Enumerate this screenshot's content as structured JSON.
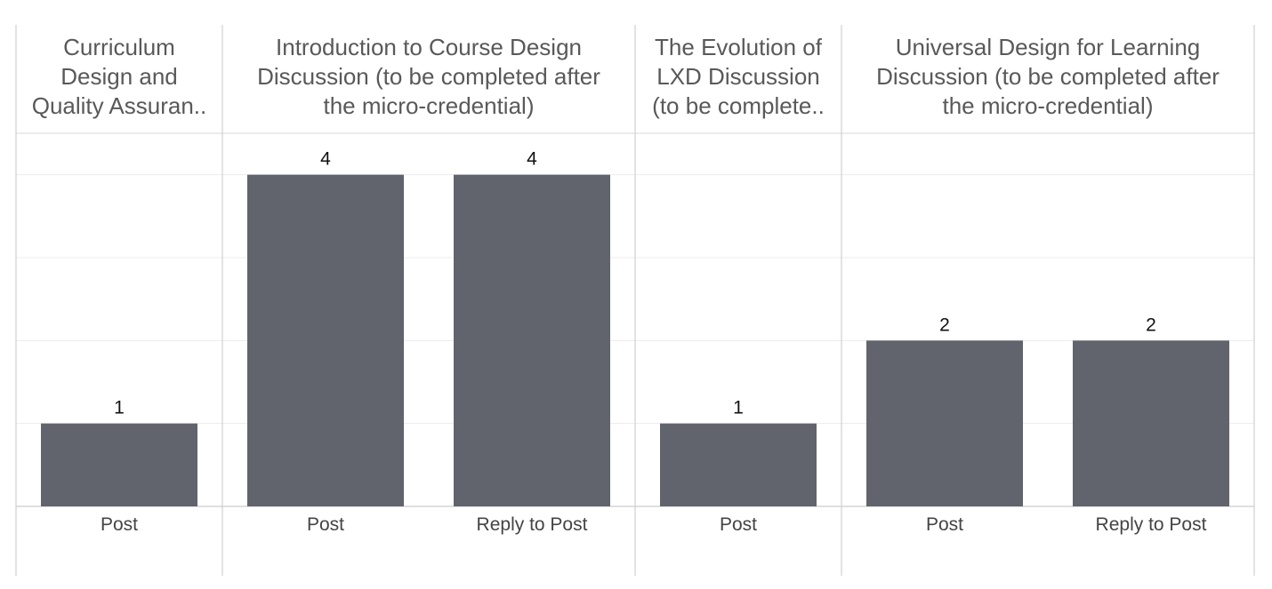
{
  "chart_data": {
    "type": "bar",
    "ylim": [
      0,
      4.5
    ],
    "grid": true,
    "bar_color": "#61646d",
    "panels": [
      {
        "title_lines": [
          "Curriculum",
          "Design and",
          "Quality Assuran.."
        ],
        "categories": [
          "Post"
        ],
        "values": [
          1
        ]
      },
      {
        "title_lines": [
          "Introduction to Course Design",
          "Discussion (to be completed after",
          "the micro-credential)"
        ],
        "categories": [
          "Post",
          "Reply to Post"
        ],
        "values": [
          4,
          4
        ]
      },
      {
        "title_lines": [
          "The Evolution of",
          "LXD Discussion",
          "(to be complete.."
        ],
        "categories": [
          "Post"
        ],
        "values": [
          1
        ]
      },
      {
        "title_lines": [
          "Universal Design for Learning",
          "Discussion (to be completed after",
          "the micro-credential)"
        ],
        "categories": [
          "Post",
          "Reply to Post"
        ],
        "values": [
          2,
          2
        ]
      }
    ]
  }
}
